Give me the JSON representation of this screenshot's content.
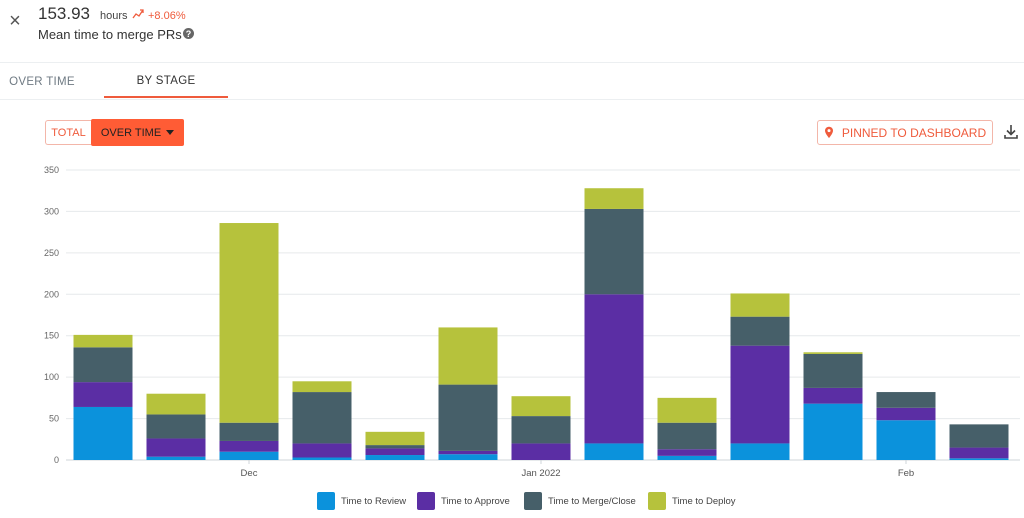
{
  "header": {
    "close_symbol": "×",
    "value": "153.93",
    "unit": "hours",
    "change": "+8.06%",
    "title": "Mean time to merge PRs",
    "help_symbol": "?"
  },
  "tabs": [
    {
      "label": "OVER TIME",
      "active": false
    },
    {
      "label": "BY STAGE",
      "active": true
    }
  ],
  "toolbar": {
    "total_label": "TOTAL",
    "over_time_label": "OVER TIME",
    "pinned_label": "PINNED TO DASHBOARD"
  },
  "colors": {
    "accent": "#ff5c35",
    "review": "#0b92dc",
    "approve": "#5b2ea4",
    "merge": "#465f69",
    "deploy": "#b6c23c"
  },
  "icons": [
    "close-icon",
    "trend-up-icon",
    "help-icon",
    "caret-down-icon",
    "pin-icon",
    "download-icon"
  ],
  "chart_data": {
    "type": "bar",
    "stacked": true,
    "ylim": [
      0,
      350
    ],
    "yticks": [
      0,
      50,
      100,
      150,
      200,
      250,
      300,
      350
    ],
    "grid": true,
    "legend_position": "bottom",
    "x_tick_labels": [
      {
        "label": "Dec",
        "index": 2
      },
      {
        "label": "Jan 2022",
        "index": 6
      },
      {
        "label": "Feb",
        "index": 11
      }
    ],
    "series": [
      {
        "name": "Time to Review",
        "color": "#0b92dc",
        "values": [
          64,
          4,
          10,
          3,
          6,
          7,
          0,
          20,
          5,
          20,
          68,
          48,
          2
        ]
      },
      {
        "name": "Time to Approve",
        "color": "#5b2ea4",
        "values": [
          30,
          22,
          13,
          17,
          8,
          4,
          20,
          180,
          8,
          118,
          19,
          15,
          13
        ]
      },
      {
        "name": "Time to Merge/Close",
        "color": "#465f69",
        "values": [
          42,
          29,
          22,
          62,
          4,
          80,
          33,
          103,
          32,
          35,
          41,
          19,
          28
        ]
      },
      {
        "name": "Time to Deploy",
        "color": "#b6c23c",
        "values": [
          15,
          25,
          241,
          13,
          16,
          69,
          24,
          25,
          30,
          28,
          2,
          0,
          0
        ]
      }
    ]
  }
}
